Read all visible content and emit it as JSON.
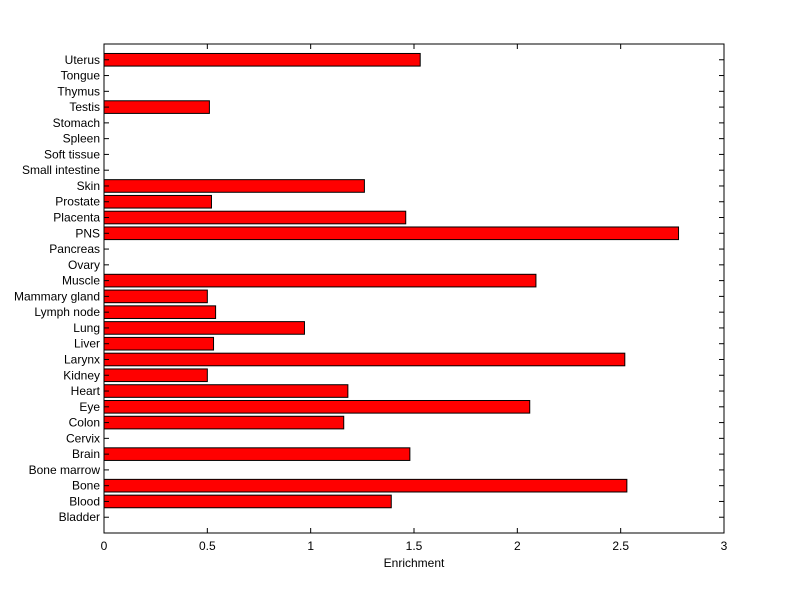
{
  "chart_data": {
    "type": "bar",
    "orientation": "horizontal",
    "title": "",
    "xlabel": "Enrichment",
    "ylabel": "",
    "xlim": [
      0,
      3
    ],
    "xticks": [
      0,
      0.5,
      1,
      1.5,
      2,
      2.5,
      3
    ],
    "xtick_labels": [
      "0",
      "0.5",
      "1",
      "1.5",
      "2",
      "2.5",
      "3"
    ],
    "grid": false,
    "bar_color": "#ff0000",
    "bar_edge_color": "#000000",
    "categories": [
      "Bladder",
      "Blood",
      "Bone",
      "Bone marrow",
      "Brain",
      "Cervix",
      "Colon",
      "Eye",
      "Heart",
      "Kidney",
      "Larynx",
      "Liver",
      "Lung",
      "Lymph node",
      "Mammary gland",
      "Muscle",
      "Ovary",
      "Pancreas",
      "PNS",
      "Placenta",
      "Prostate",
      "Skin",
      "Small intestine",
      "Soft tissue",
      "Spleen",
      "Stomach",
      "Testis",
      "Thymus",
      "Tongue",
      "Uterus"
    ],
    "values": [
      0,
      1.39,
      2.53,
      0,
      1.48,
      0,
      1.16,
      2.06,
      1.18,
      0.5,
      2.52,
      0.53,
      0.97,
      0.54,
      0.5,
      2.09,
      0,
      0,
      2.78,
      1.46,
      0.52,
      1.26,
      0,
      0,
      0,
      0,
      0.51,
      0,
      0,
      1.53
    ]
  }
}
